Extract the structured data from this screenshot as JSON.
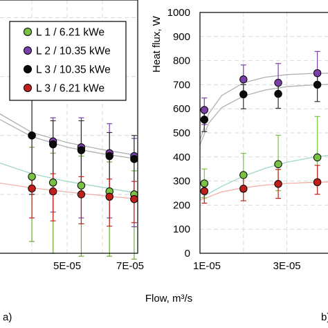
{
  "chart_data": [
    {
      "type": "scatter",
      "panel_label": "a)",
      "xlabel": "Flow, m³/s",
      "ylabel": "",
      "x_ticks": [
        "5E-05",
        "7E-05"
      ],
      "legend": {
        "placement": "top-right",
        "entries": [
          {
            "label": "L 1 / 6.21 kWe",
            "color": "#7ac143"
          },
          {
            "label": "L 2 / 10.35 kWe",
            "color": "#7b3fa8"
          },
          {
            "label": "L 3 / 10.35 kWe",
            "color": "#0a0a0a"
          },
          {
            "label": "L 3 / 6.21 kWe",
            "color": "#c0201b"
          }
        ]
      },
      "series": [
        {
          "name": "L 1 / 6.21 kWe",
          "color": "#7ac143",
          "errcolor": "#6aaa34",
          "x": [
            4e-05,
            4.6e-05,
            5.4e-05,
            6.2e-05,
            6.9e-05
          ],
          "y": [
            330,
            320,
            315,
            305,
            300
          ],
          "err": [
            [
              110,
              50
            ],
            [
              120,
              50
            ],
            [
              120,
              50
            ],
            [
              110,
              50
            ],
            [
              110,
              40
            ]
          ]
        },
        {
          "name": "L 2 / 10.35 kWe",
          "color": "#7b3fa8",
          "errcolor": "#7b3fa8",
          "x": [
            4e-05,
            4.6e-05,
            5.4e-05,
            6.2e-05,
            6.9e-05
          ],
          "y": [
            400,
            390,
            380,
            370,
            365
          ],
          "err": [
            [
              100,
              60
            ],
            [
              120,
              40
            ],
            [
              120,
              50
            ],
            [
              110,
              50
            ],
            [
              120,
              30
            ]
          ]
        },
        {
          "name": "L 3 / 10.35 kWe",
          "color": "#0a0a0a",
          "errcolor": "#303030",
          "x": [
            4e-05,
            4.6e-05,
            5.4e-05,
            6.2e-05,
            6.9e-05
          ],
          "y": [
            400,
            385,
            375,
            365,
            360
          ],
          "err": [
            [
              100,
              60
            ],
            [
              60,
              40
            ],
            [
              60,
              50
            ],
            [
              60,
              40
            ],
            [
              60,
              40
            ]
          ]
        },
        {
          "name": "L 3 / 6.21 kWe",
          "color": "#c0201b",
          "errcolor": "#c0201b",
          "x": [
            4e-05,
            4.6e-05,
            5.4e-05,
            6.2e-05,
            6.9e-05
          ],
          "y": [
            310,
            305,
            300,
            296,
            292
          ],
          "err": [
            [
              50,
              20
            ],
            [
              50,
              30
            ],
            [
              50,
              30
            ],
            [
              50,
              30
            ],
            [
              40,
              30
            ]
          ]
        }
      ],
      "trendlines": [
        {
          "name": "L 1 / 6.21 kWe",
          "color": "#9fd8c8",
          "points": [
            [
              3e-05,
              355
            ],
            [
              4e-05,
              335
            ],
            [
              5e-05,
              322
            ],
            [
              6e-05,
              312
            ],
            [
              7e-05,
              302
            ]
          ]
        },
        {
          "name": "L 2 / 10.35 kWe",
          "color": "#b0b0b0",
          "points": [
            [
              3e-05,
              440
            ],
            [
              4e-05,
              405
            ],
            [
              5e-05,
              388
            ],
            [
              6e-05,
              376
            ],
            [
              7e-05,
              366
            ]
          ]
        },
        {
          "name": "L 3 / 10.35 kWe",
          "color": "#b0b0b0",
          "points": [
            [
              3e-05,
              430
            ],
            [
              4e-05,
              398
            ],
            [
              5e-05,
              380
            ],
            [
              6e-05,
              369
            ],
            [
              7e-05,
              360
            ]
          ]
        },
        {
          "name": "L 3 / 6.21 kWe",
          "color": "#f0b0a8",
          "points": [
            [
              3e-05,
              320
            ],
            [
              4e-05,
              311
            ],
            [
              5e-05,
              304
            ],
            [
              6e-05,
              298
            ],
            [
              7e-05,
              292
            ]
          ]
        }
      ],
      "xlim": [
        2.9e-05,
        7e-05
      ],
      "ylim": [
        200,
        630
      ],
      "grid": true
    },
    {
      "type": "scatter",
      "panel_label": "b)",
      "xlabel": "",
      "ylabel": "Heat flux, W",
      "y_ticks": [
        "0",
        "100",
        "200",
        "300",
        "400",
        "500",
        "600",
        "700",
        "800",
        "900",
        "1000"
      ],
      "x_ticks": [
        "1E-05",
        "3E-05"
      ],
      "series": [
        {
          "name": "L 1 / 6.21 kWe",
          "color": "#7ac143",
          "errcolor": "#7ac143",
          "x": [
            1.1e-05,
            2e-05,
            2.8e-05,
            3.7e-05
          ],
          "y": [
            290,
            325,
            370,
            398
          ],
          "err": [
            [
              60,
              60
            ],
            [
              70,
              90
            ],
            [
              110,
              120
            ],
            [
              110,
              170
            ]
          ]
        },
        {
          "name": "L 2 / 10.35 kWe",
          "color": "#7b3fa8",
          "errcolor": "#7b3fa8",
          "x": [
            1.1e-05,
            2e-05,
            2.8e-05,
            3.7e-05
          ],
          "y": [
            595,
            722,
            708,
            748
          ],
          "err": [
            [
              60,
              50
            ],
            [
              60,
              60
            ],
            [
              50,
              80
            ],
            [
              50,
              90
            ]
          ]
        },
        {
          "name": "L 3 / 10.35 kWe",
          "color": "#0a0a0a",
          "errcolor": "#303030",
          "x": [
            1.1e-05,
            2e-05,
            2.8e-05,
            3.7e-05
          ],
          "y": [
            555,
            660,
            662,
            700
          ],
          "err": [
            [
              50,
              40
            ],
            [
              60,
              40
            ],
            [
              60,
              50
            ],
            [
              70,
              40
            ]
          ]
        },
        {
          "name": "L 3 / 6.21 kWe",
          "color": "#c0201b",
          "errcolor": "#c0201b",
          "x": [
            1.1e-05,
            2e-05,
            2.8e-05,
            3.7e-05
          ],
          "y": [
            258,
            268,
            288,
            295
          ],
          "err": [
            [
              50,
              40
            ],
            [
              50,
              50
            ],
            [
              60,
              60
            ],
            [
              50,
              70
            ]
          ]
        }
      ],
      "trendlines": [
        {
          "name": "L 1 / 6.21 kWe",
          "color": "#9fd8c8",
          "points": [
            [
              1e-05,
              228
            ],
            [
              1.5e-05,
              278
            ],
            [
              2e-05,
              320
            ],
            [
              2.5e-05,
              353
            ],
            [
              3e-05,
              378
            ],
            [
              3.5e-05,
              395
            ],
            [
              4e-05,
              408
            ]
          ]
        },
        {
          "name": "L 2 / 10.35 kWe",
          "color": "#b0b0b0",
          "points": [
            [
              1e-05,
              470
            ],
            [
              1.2e-05,
              580
            ],
            [
              1.5e-05,
              655
            ],
            [
              2e-05,
              708
            ],
            [
              2.5e-05,
              731
            ],
            [
              3e-05,
              742
            ],
            [
              3.5e-05,
              746
            ],
            [
              4e-05,
              748
            ]
          ]
        },
        {
          "name": "L 3 / 10.35 kWe",
          "color": "#b0b0b0",
          "points": [
            [
              1e-05,
              450
            ],
            [
              1.2e-05,
              540
            ],
            [
              1.5e-05,
              605
            ],
            [
              2e-05,
              653
            ],
            [
              2.5e-05,
              678
            ],
            [
              3e-05,
              692
            ],
            [
              3.5e-05,
              698
            ],
            [
              4e-05,
              702
            ]
          ]
        },
        {
          "name": "L 3 / 6.21 kWe",
          "color": "#f0b0a8",
          "points": [
            [
              1e-05,
              220
            ],
            [
              1.5e-05,
              255
            ],
            [
              2e-05,
              272
            ],
            [
              2.5e-05,
              283
            ],
            [
              3e-05,
              290
            ],
            [
              3.5e-05,
              294
            ],
            [
              4e-05,
              296
            ]
          ]
        }
      ],
      "xlim": [
        1e-05,
        4.2e-05
      ],
      "ylim": [
        0,
        1000
      ],
      "grid": true
    }
  ]
}
